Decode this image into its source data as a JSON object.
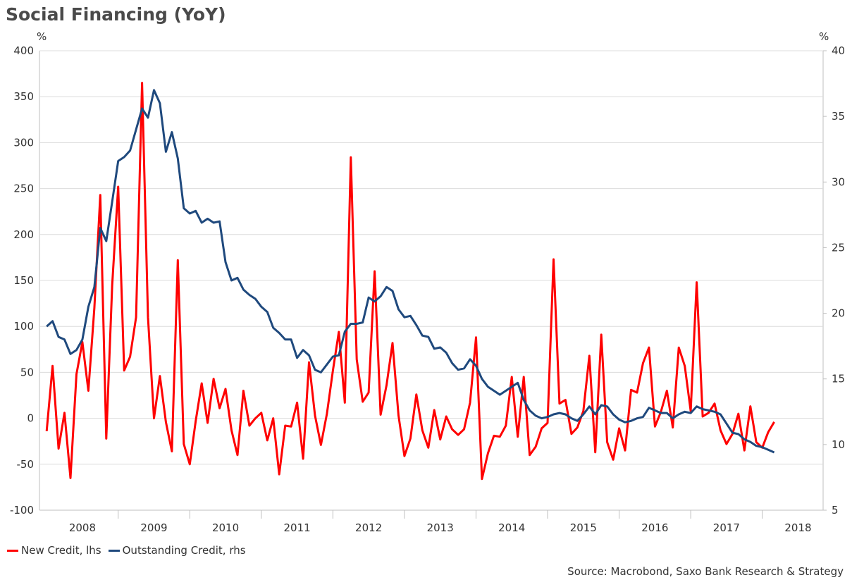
{
  "chart_data": {
    "type": "line",
    "title": "Social Financing (YoY)",
    "y_unit_left": "%",
    "y_unit_right": "%",
    "left_axis": {
      "min": -100,
      "max": 400,
      "ticks": [
        -100,
        -50,
        0,
        50,
        100,
        150,
        200,
        250,
        300,
        350,
        400
      ]
    },
    "right_axis": {
      "min": 5,
      "max": 40,
      "ticks": [
        5,
        10,
        15,
        20,
        25,
        30,
        35,
        40
      ]
    },
    "x_years": [
      "2008",
      "2009",
      "2010",
      "2011",
      "2012",
      "2013",
      "2014",
      "2015",
      "2016",
      "2017",
      "2018"
    ],
    "x_start": 2008.0,
    "grid": true,
    "legend_position": "bottom-left",
    "series": [
      {
        "name": "New Credit, lhs",
        "axis": "left",
        "color": "#ff0000",
        "x_start": 2008.0,
        "step_months": 1,
        "values": [
          -14,
          57,
          -33,
          6,
          -65,
          48,
          83,
          30,
          120,
          243,
          -22,
          145,
          252,
          52,
          67,
          110,
          365,
          110,
          0,
          46,
          -4,
          -36,
          172,
          -28,
          -50,
          -3,
          38,
          -5,
          43,
          11,
          32,
          -13,
          -40,
          30,
          -8,
          0,
          6,
          -24,
          0,
          -61,
          -8,
          -9,
          17,
          -44,
          61,
          3,
          -29,
          5,
          52,
          94,
          17,
          284,
          64,
          18,
          28,
          160,
          4,
          36,
          82,
          3,
          -41,
          -22,
          26,
          -13,
          -32,
          9,
          -23,
          2,
          -12,
          -18,
          -12,
          17,
          88,
          -66,
          -38,
          -19,
          -20,
          -8,
          45,
          -20,
          45,
          -40,
          -31,
          -11,
          -5,
          173,
          16,
          20,
          -17,
          -10,
          8,
          68,
          -37,
          91,
          -26,
          -45,
          -11,
          -35,
          31,
          28,
          60,
          77,
          -9,
          7,
          30,
          -10,
          77,
          57,
          8,
          148,
          2,
          6,
          16,
          -13,
          -28,
          -17,
          5,
          -35,
          13,
          -26,
          -32,
          -15,
          -4
        ]
      },
      {
        "name": "Outstanding Credit, rhs",
        "axis": "right",
        "color": "#1f497d",
        "x_start": 2008.0,
        "step_months": 1,
        "values": [
          19.0,
          19.4,
          18.2,
          18.0,
          16.9,
          17.2,
          18.0,
          20.5,
          22.0,
          26.5,
          25.5,
          28.5,
          31.6,
          31.9,
          32.4,
          34.0,
          35.6,
          34.9,
          37.0,
          36.0,
          32.3,
          33.8,
          31.8,
          28.0,
          27.6,
          27.8,
          26.9,
          27.2,
          26.9,
          27.0,
          23.9,
          22.5,
          22.7,
          21.8,
          21.4,
          21.1,
          20.5,
          20.1,
          18.9,
          18.5,
          18.0,
          18.0,
          16.6,
          17.2,
          16.8,
          15.7,
          15.5,
          16.1,
          16.7,
          16.8,
          18.6,
          19.2,
          19.2,
          19.3,
          21.2,
          20.9,
          21.3,
          22.0,
          21.7,
          20.3,
          19.7,
          19.8,
          19.1,
          18.3,
          18.2,
          17.3,
          17.4,
          17.0,
          16.2,
          15.7,
          15.8,
          16.5,
          16.0,
          15.0,
          14.4,
          14.1,
          13.8,
          14.1,
          14.4,
          14.7,
          13.4,
          12.6,
          12.2,
          12.0,
          12.1,
          12.3,
          12.4,
          12.3,
          12.0,
          11.8,
          12.3,
          12.9,
          12.3,
          13.0,
          12.9,
          12.3,
          11.9,
          11.7,
          11.8,
          12.0,
          12.1,
          12.8,
          12.6,
          12.4,
          12.4,
          12.0,
          12.3,
          12.5,
          12.4,
          12.9,
          12.7,
          12.6,
          12.5,
          12.3,
          11.6,
          10.9,
          10.8,
          10.4,
          10.2,
          9.9,
          9.8,
          9.6,
          9.4
        ]
      }
    ]
  },
  "source": "Source: Macrobond, Saxo Bank Research & Strategy"
}
